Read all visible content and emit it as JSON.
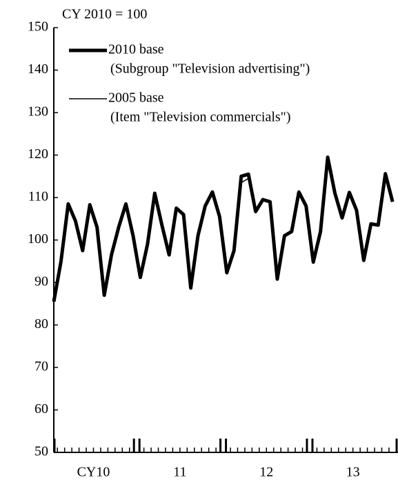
{
  "chart_data": {
    "type": "line",
    "subtitle": "CY 2010 = 100",
    "categories": [
      null,
      null,
      null,
      null,
      null,
      null,
      null,
      null,
      null,
      null,
      null,
      null,
      null,
      null,
      null,
      null,
      null,
      null,
      null,
      null,
      null,
      null,
      null,
      null,
      null,
      null,
      null,
      null,
      null,
      null,
      null,
      null,
      null,
      null,
      null,
      null,
      null,
      null,
      null,
      null,
      null,
      null,
      null,
      null,
      null,
      null,
      null,
      null
    ],
    "year_labels": [
      "CY10",
      "11",
      "12",
      "13"
    ],
    "series": [
      {
        "name": "2010 base",
        "description": "(Subgroup \"Television advertising\")",
        "color": "#000000",
        "width": 5,
        "values": [
          85.5,
          95,
          108.5,
          104.5,
          97.5,
          108.3,
          103,
          87,
          96.5,
          103,
          108.5,
          101,
          91.2,
          99,
          111,
          103.5,
          96.5,
          107.5,
          106,
          88.7,
          101,
          108,
          111.3,
          105.5,
          92.3,
          97.5,
          115,
          115.5,
          106.7,
          109.5,
          109,
          90.8,
          101,
          102,
          111.3,
          108,
          94.8,
          102,
          119.5,
          111,
          105.2,
          111.2,
          107,
          95.2,
          103.8,
          103.5,
          115.6,
          109
        ]
      },
      {
        "name": "2005 base",
        "description": "(Item \"Television commercials\")",
        "color": "#000000",
        "width": 1.5,
        "values": [
          85.5,
          95,
          108.5,
          104.5,
          97.5,
          108.3,
          103,
          87,
          96.5,
          103,
          108.5,
          101,
          91.2,
          99,
          111,
          103.5,
          96.5,
          107.5,
          106,
          88.7,
          101,
          108,
          111.3,
          105.5,
          92.3,
          97.5,
          113.5,
          114.5,
          106.7,
          109.5,
          109,
          90.8,
          101,
          102,
          111.3,
          108,
          94.8,
          102,
          119.5,
          111,
          105.2,
          111.2,
          107,
          95.2,
          103.8,
          103.5,
          115.6,
          109
        ]
      }
    ],
    "ylim": [
      50,
      150
    ],
    "yticks": [
      50,
      60,
      70,
      80,
      90,
      100,
      110,
      120,
      130,
      140,
      150
    ]
  }
}
